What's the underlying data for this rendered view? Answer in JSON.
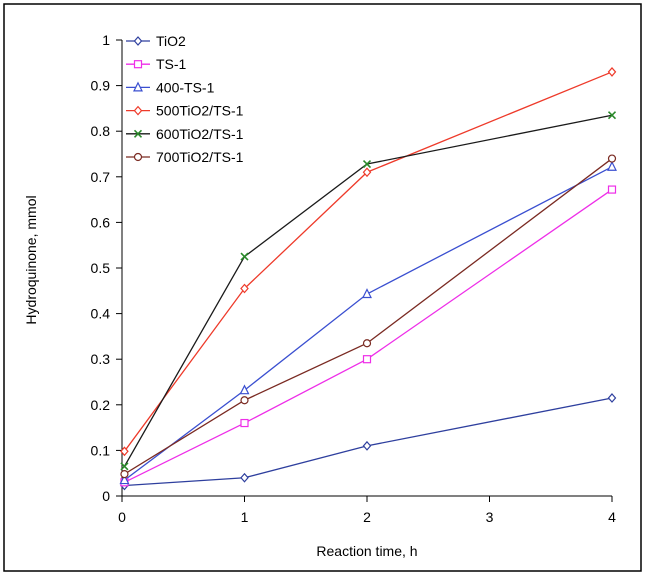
{
  "chart_data": {
    "type": "line",
    "title": "",
    "xlabel": "Reaction time, h",
    "ylabel": "Hydroquinone, mmol",
    "xlim": [
      0,
      4
    ],
    "ylim": [
      0,
      1
    ],
    "x_ticks": [
      0,
      1,
      2,
      3,
      4
    ],
    "y_ticks": [
      0,
      0.1,
      0.2,
      0.3,
      0.4,
      0.5,
      0.6,
      0.7,
      0.8,
      0.9,
      1
    ],
    "grid": false,
    "legend_position": "top-left",
    "series": [
      {
        "name": "TiO2",
        "color": "#2e3f9e",
        "marker": "diamond",
        "points": [
          [
            0.02,
            0.023
          ],
          [
            1,
            0.04
          ],
          [
            2,
            0.11
          ],
          [
            4,
            0.215
          ]
        ]
      },
      {
        "name": "TS-1",
        "color": "#ee2ee8",
        "marker": "square",
        "points": [
          [
            0.02,
            0.03
          ],
          [
            1,
            0.16
          ],
          [
            2,
            0.3
          ],
          [
            4,
            0.672
          ]
        ]
      },
      {
        "name": "400-TS-1",
        "color": "#3a4fd0",
        "marker": "triangle",
        "points": [
          [
            0.02,
            0.035
          ],
          [
            1,
            0.232
          ],
          [
            2,
            0.443
          ],
          [
            4,
            0.722
          ]
        ]
      },
      {
        "name": "500TiO2/TS-1",
        "color": "#ee3a2a",
        "marker": "diamond",
        "points": [
          [
            0.02,
            0.098
          ],
          [
            1,
            0.455
          ],
          [
            2,
            0.71
          ],
          [
            4,
            0.93
          ]
        ]
      },
      {
        "name": "600TiO2/TS-1",
        "color": "#1a1a1a",
        "marker": "x",
        "points": [
          [
            0.02,
            0.065
          ],
          [
            1,
            0.525
          ],
          [
            2,
            0.728
          ],
          [
            4,
            0.835
          ]
        ]
      },
      {
        "name": "700TiO2/TS-1",
        "color": "#7a2a22",
        "marker": "circle",
        "points": [
          [
            0.02,
            0.048
          ],
          [
            1,
            0.21
          ],
          [
            2,
            0.335
          ],
          [
            4,
            0.74
          ]
        ]
      }
    ]
  }
}
